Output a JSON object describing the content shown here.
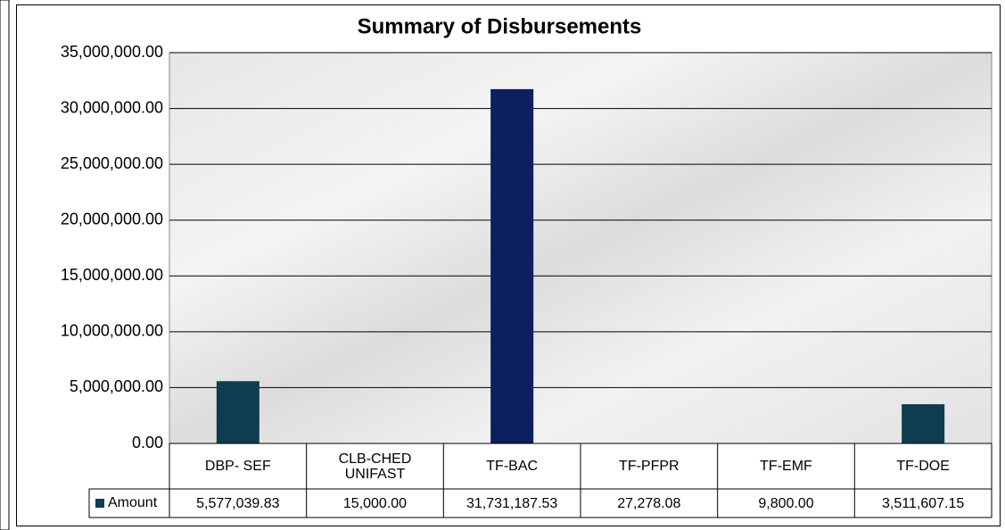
{
  "chart_data": {
    "type": "bar",
    "title": "Summary of Disbursements",
    "categories": [
      "DBP- SEF",
      "CLB-CHED UNIFAST",
      "TF-BAC",
      "TF-PFPR",
      "TF-EMF",
      "TF-DOE"
    ],
    "series": [
      {
        "name": "Amount",
        "color": "#0f3c4e",
        "point_colors": [
          "#0f3c4e",
          "#0f3c4e",
          "#0c1f5e",
          "#0f3c4e",
          "#0f3c4e",
          "#0f3c4e"
        ],
        "values": [
          5577039.83,
          15000,
          31731187.53,
          27278.08,
          9800,
          3511607.15
        ],
        "value_labels": [
          "5,577,039.83",
          "15,000.00",
          "31,731,187.53",
          "27,278.08",
          "9,800.00",
          "3,511,607.15"
        ]
      }
    ],
    "ylim": [
      0,
      35000000
    ],
    "yticks": [
      {
        "value": 0,
        "label": "0.00"
      },
      {
        "value": 5000000,
        "label": "5,000,000.00"
      },
      {
        "value": 10000000,
        "label": "10,000,000.00"
      },
      {
        "value": 15000000,
        "label": "15,000,000.00"
      },
      {
        "value": 20000000,
        "label": "20,000,000.00"
      },
      {
        "value": 25000000,
        "label": "25,000,000.00"
      },
      {
        "value": 30000000,
        "label": "30,000,000.00"
      },
      {
        "value": 35000000,
        "label": "35,000,000.00"
      }
    ],
    "grid": true
  }
}
